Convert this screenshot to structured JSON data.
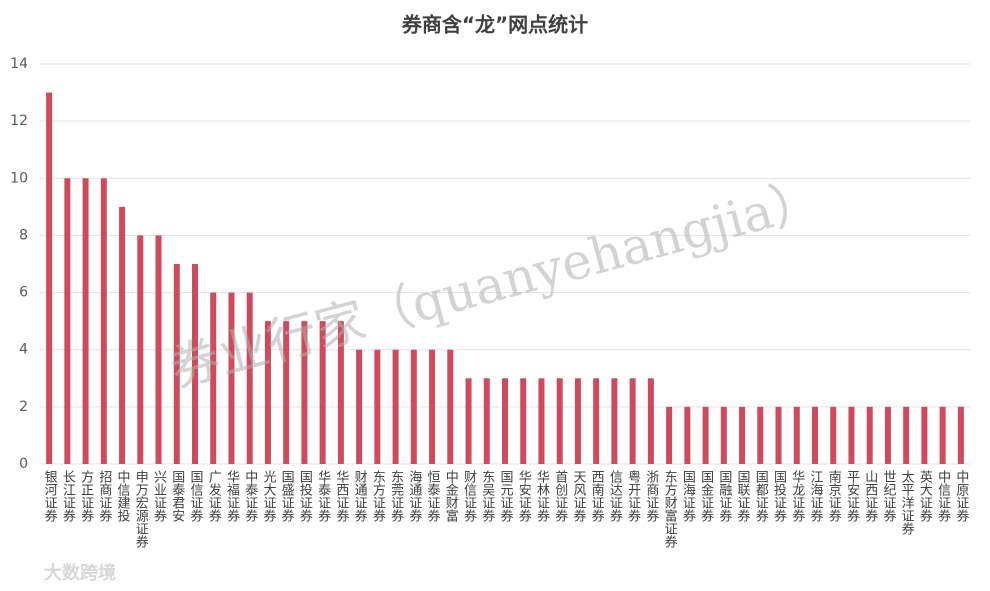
{
  "chart_data": {
    "type": "bar",
    "title": "券商含“龙”网点统计",
    "categories": [
      "银河证券",
      "长江证券",
      "方正证券",
      "招商证券",
      "中信建投",
      "申万宏源证券",
      "兴业证券",
      "国泰君安",
      "国信证券",
      "广发证券",
      "华福证券",
      "中泰证券",
      "光大证券",
      "国盛证券",
      "国投证券",
      "华泰证券",
      "华西证券",
      "财通证券",
      "东方证券",
      "东莞证券",
      "海通证券",
      "恒泰证券",
      "中金财富",
      "财信证券",
      "东吴证券",
      "国元证券",
      "华安证券",
      "华林证券",
      "首创证券",
      "天风证券",
      "西南证券",
      "信达证券",
      "粤开证券",
      "浙商证券",
      "东方财富证券",
      "国海证券",
      "国金证券",
      "国融证券",
      "国联证券",
      "国都证券",
      "国投证券",
      "华龙证券",
      "江海证券",
      "南京证券",
      "平安证券",
      "山西证券",
      "世纪证券",
      "太平洋证券",
      "英大证券",
      "中信证券",
      "中原证券"
    ],
    "values": [
      13,
      10,
      10,
      10,
      9,
      8,
      8,
      7,
      7,
      6,
      6,
      6,
      5,
      5,
      5,
      5,
      5,
      4,
      4,
      4,
      4,
      4,
      4,
      3,
      3,
      3,
      3,
      3,
      3,
      3,
      3,
      3,
      3,
      3,
      2,
      2,
      2,
      2,
      2,
      2,
      2,
      2,
      2,
      2,
      2,
      2,
      2,
      2,
      2,
      2,
      2
    ],
    "color": "#cf4a5c",
    "ylim": [
      0,
      14
    ],
    "yticks": [
      0,
      2,
      4,
      6,
      8,
      10,
      12,
      14
    ],
    "grid": true,
    "watermark": "券业行家（quanyehangjia）",
    "logo": "大数跨境"
  }
}
